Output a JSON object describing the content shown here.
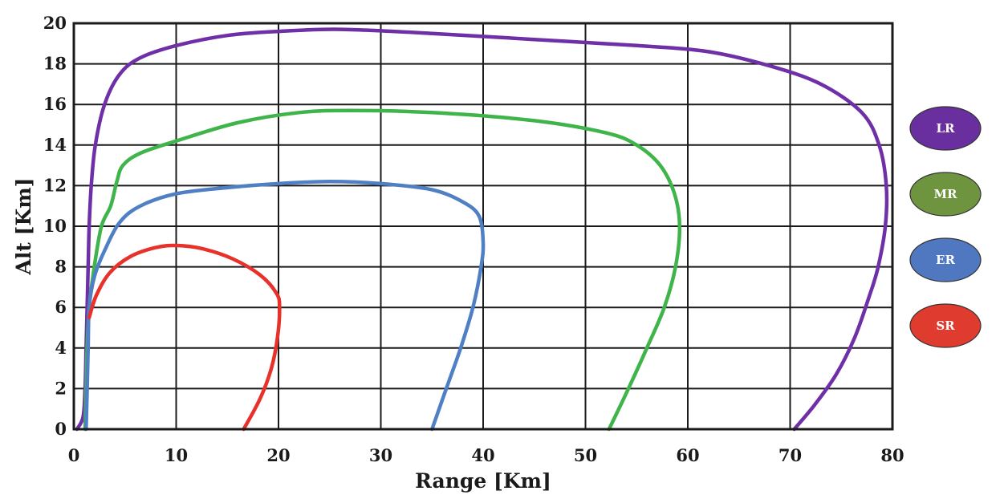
{
  "chart_data": {
    "type": "line",
    "xlabel": "Range [Km]",
    "ylabel": "Alt [Km]",
    "xlim": [
      0,
      80
    ],
    "ylim": [
      0,
      20
    ],
    "x_ticks": [
      0,
      10,
      20,
      30,
      40,
      50,
      60,
      70,
      80
    ],
    "y_ticks": [
      0,
      2,
      4,
      6,
      8,
      10,
      12,
      14,
      16,
      18,
      20
    ],
    "grid": true,
    "legend_position": "right",
    "series": [
      {
        "name": "LR",
        "color": "#6f2fa6",
        "legend_color": "#6a2f9e",
        "points": [
          [
            0.3,
            0
          ],
          [
            0.9,
            0.6
          ],
          [
            1.1,
            2
          ],
          [
            1.2,
            4
          ],
          [
            1.3,
            6
          ],
          [
            1.4,
            8
          ],
          [
            1.5,
            10
          ],
          [
            1.7,
            12
          ],
          [
            2.1,
            14
          ],
          [
            3.0,
            16
          ],
          [
            4.5,
            17.5
          ],
          [
            6.5,
            18.3
          ],
          [
            10,
            18.9
          ],
          [
            15,
            19.4
          ],
          [
            20,
            19.6
          ],
          [
            26,
            19.7
          ],
          [
            35,
            19.5
          ],
          [
            45,
            19.2
          ],
          [
            55,
            18.9
          ],
          [
            62,
            18.6
          ],
          [
            68,
            17.9
          ],
          [
            73,
            17.0
          ],
          [
            77,
            15.6
          ],
          [
            78.7,
            14.0
          ],
          [
            79.4,
            12.0
          ],
          [
            79.3,
            10.0
          ],
          [
            78.6,
            8.0
          ],
          [
            77.7,
            6.5
          ],
          [
            76.3,
            4.5
          ],
          [
            74.5,
            2.7
          ],
          [
            72.4,
            1.2
          ],
          [
            70.4,
            0
          ]
        ]
      },
      {
        "name": "MR",
        "color": "#3fb44a",
        "legend_color": "#6f9440",
        "points": [
          [
            1.1,
            0
          ],
          [
            1.2,
            2
          ],
          [
            1.3,
            4
          ],
          [
            1.5,
            6
          ],
          [
            2.0,
            8
          ],
          [
            2.7,
            10
          ],
          [
            3.6,
            11
          ],
          [
            4.2,
            12.2
          ],
          [
            4.8,
            13.0
          ],
          [
            6.5,
            13.6
          ],
          [
            10,
            14.2
          ],
          [
            16,
            15.1
          ],
          [
            22,
            15.6
          ],
          [
            27,
            15.7
          ],
          [
            35,
            15.6
          ],
          [
            45,
            15.2
          ],
          [
            52,
            14.6
          ],
          [
            55,
            14.0
          ],
          [
            57.3,
            13.0
          ],
          [
            58.7,
            11.6
          ],
          [
            59.2,
            10.0
          ],
          [
            58.8,
            8.0
          ],
          [
            57.7,
            6.0
          ],
          [
            56.0,
            4.0
          ],
          [
            54.2,
            2.0
          ],
          [
            52.3,
            0
          ]
        ]
      },
      {
        "name": "ER",
        "color": "#4f7fc4",
        "legend_color": "#4f78c0",
        "points": [
          [
            1.2,
            0
          ],
          [
            1.3,
            2
          ],
          [
            1.4,
            4
          ],
          [
            1.5,
            6
          ],
          [
            2.0,
            7.5
          ],
          [
            3.0,
            8.8
          ],
          [
            4.5,
            10.2
          ],
          [
            6.5,
            11.0
          ],
          [
            10,
            11.6
          ],
          [
            15,
            11.9
          ],
          [
            20,
            12.1
          ],
          [
            25,
            12.2
          ],
          [
            30,
            12.1
          ],
          [
            35,
            11.8
          ],
          [
            38,
            11.2
          ],
          [
            39.6,
            10.5
          ],
          [
            40.0,
            9.2
          ],
          [
            39.8,
            8.0
          ],
          [
            39.0,
            6.0
          ],
          [
            37.8,
            4.0
          ],
          [
            36.4,
            2.0
          ],
          [
            35.0,
            0
          ]
        ]
      },
      {
        "name": "SR",
        "color": "#e8312a",
        "legend_color": "#e03b2f",
        "points": [
          [
            1.5,
            5.5
          ],
          [
            2.2,
            6.6
          ],
          [
            3.5,
            7.7
          ],
          [
            5.5,
            8.5
          ],
          [
            8,
            8.95
          ],
          [
            10,
            9.05
          ],
          [
            12.5,
            8.9
          ],
          [
            15.5,
            8.4
          ],
          [
            18.2,
            7.6
          ],
          [
            19.8,
            6.7
          ],
          [
            20.1,
            6.0
          ],
          [
            19.9,
            4.5
          ],
          [
            19.3,
            3.0
          ],
          [
            18.2,
            1.5
          ],
          [
            16.6,
            0
          ]
        ]
      }
    ]
  }
}
